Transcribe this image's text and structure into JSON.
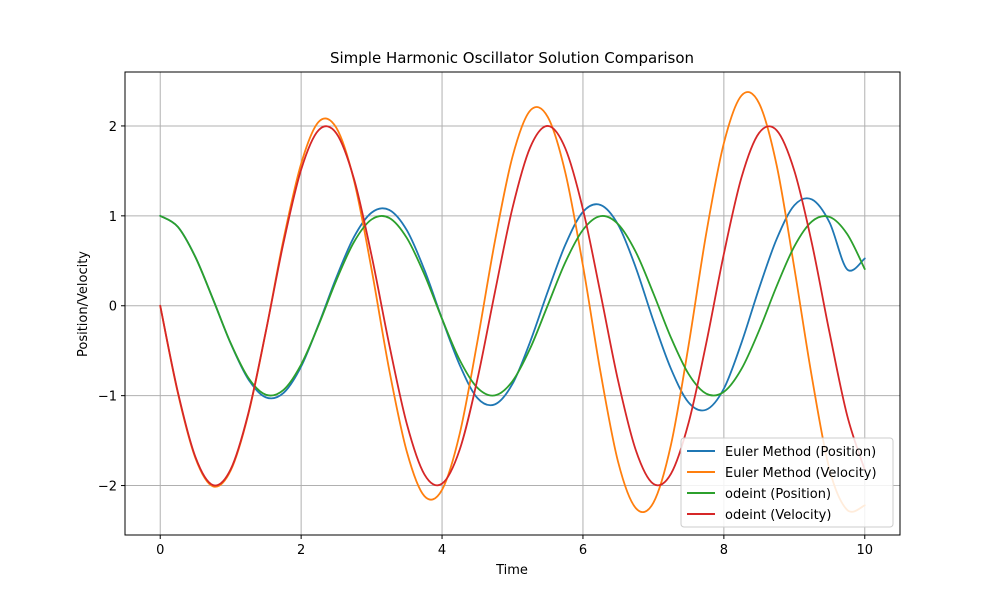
{
  "chart_data": {
    "type": "line",
    "title": "Simple Harmonic Oscillator Solution Comparison",
    "xlabel": "Time",
    "ylabel": "Position/Velocity",
    "xlim": [
      -0.5,
      10.5
    ],
    "ylim": [
      -2.55,
      2.6
    ],
    "x_ticks": [
      0,
      2,
      4,
      6,
      8,
      10
    ],
    "x_tick_labels": [
      "0",
      "2",
      "4",
      "6",
      "8",
      "10"
    ],
    "y_ticks": [
      -2,
      -1,
      0,
      1,
      2
    ],
    "y_tick_labels": [
      "−2",
      "−1",
      "0",
      "1",
      "2"
    ],
    "grid": true,
    "legend_position": "lower-right",
    "x": [
      0,
      0.25,
      0.5,
      0.75,
      1,
      1.25,
      1.5,
      1.75,
      2,
      2.25,
      2.5,
      2.75,
      3,
      3.25,
      3.5,
      3.75,
      4,
      4.25,
      4.5,
      4.75,
      5,
      5.25,
      5.5,
      5.75,
      6,
      6.25,
      6.5,
      6.75,
      7,
      7.25,
      7.5,
      7.75,
      8,
      8.25,
      8.5,
      8.75,
      9,
      9.25,
      9.5,
      9.75,
      10
    ],
    "series": [
      {
        "name": "Euler Method (Position)",
        "color": "#1f77b4",
        "values": [
          1.0,
          0.878,
          0.541,
          0.071,
          -0.419,
          -0.817,
          -1.019,
          -0.97,
          -0.675,
          -0.203,
          0.315,
          0.765,
          1.036,
          1.066,
          0.84,
          0.399,
          -0.145,
          -0.658,
          -1.025,
          -1.097,
          -0.869,
          -0.402,
          0.156,
          0.678,
          1.044,
          1.121,
          0.9,
          0.424,
          -0.167,
          -0.703,
          -1.077,
          -1.156,
          -0.922,
          -0.412,
          0.194,
          0.743,
          1.117,
          1.182,
          0.926,
          0.405,
          0.526
        ]
      },
      {
        "name": "Euler Method (Velocity)",
        "color": "#ff7f0e",
        "values": [
          0.0,
          -0.97,
          -1.695,
          -2.009,
          -1.832,
          -1.208,
          -0.283,
          0.738,
          1.58,
          2.047,
          1.979,
          1.394,
          0.404,
          -0.712,
          -1.623,
          -2.118,
          -2.047,
          -1.426,
          -0.406,
          0.716,
          1.658,
          2.17,
          2.1,
          1.48,
          0.446,
          -0.742,
          -1.74,
          -2.251,
          -2.19,
          -1.544,
          -0.437,
          0.805,
          1.808,
          2.338,
          2.252,
          1.56,
          0.42,
          -0.797,
          -1.822,
          -2.271,
          -2.22
        ]
      },
      {
        "name": "odeint (Position)",
        "color": "#2ca02c",
        "values": [
          1.0,
          0.878,
          0.54,
          0.071,
          -0.416,
          -0.801,
          -0.99,
          -0.936,
          -0.654,
          -0.211,
          0.284,
          0.709,
          0.96,
          0.977,
          0.754,
          0.347,
          -0.146,
          -0.602,
          -0.911,
          -0.997,
          -0.839,
          -0.476,
          0.004,
          0.484,
          0.844,
          0.997,
          0.907,
          0.598,
          0.137,
          -0.356,
          -0.76,
          -0.978,
          -0.958,
          -0.703,
          -0.276,
          0.219,
          0.66,
          0.938,
          0.988,
          0.798,
          0.408
        ]
      },
      {
        "name": "odeint (Velocity)",
        "color": "#d62728",
        "values": [
          0.0,
          -0.959,
          -1.683,
          -1.995,
          -1.819,
          -1.197,
          -0.282,
          0.701,
          1.514,
          1.955,
          1.918,
          1.411,
          0.558,
          -0.43,
          -1.314,
          -1.876,
          -1.979,
          -1.602,
          -0.824,
          0.15,
          1.088,
          1.759,
          2.0,
          1.75,
          1.073,
          0.133,
          -0.838,
          -1.606,
          -1.981,
          -1.868,
          -1.3,
          -0.416,
          0.576,
          1.426,
          1.922,
          1.951,
          1.502,
          0.692,
          -0.3,
          -1.22,
          -1.826
        ]
      }
    ]
  }
}
